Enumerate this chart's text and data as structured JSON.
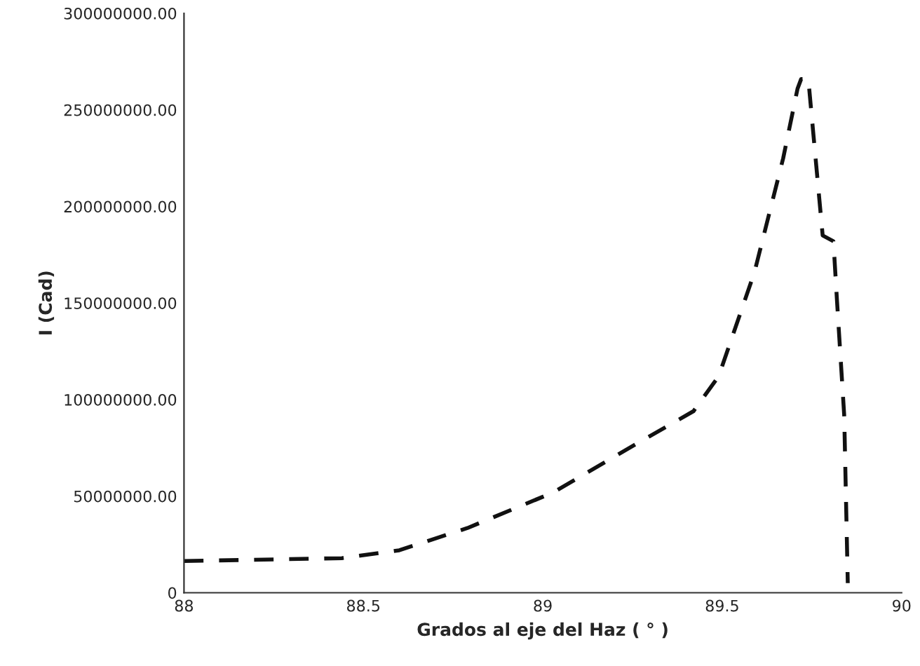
{
  "chart_data": {
    "type": "line",
    "xlabel": "Grados al eje del Haz ( ° )",
    "ylabel": "I (Cad)",
    "x": [
      88,
      88.44,
      88.6,
      88.79,
      89.03,
      89.26,
      89.42,
      89.49,
      89.59,
      89.67,
      89.71,
      89.72,
      89.74,
      89.78,
      89.81,
      89.82,
      89.84,
      89.85
    ],
    "series": [
      {
        "color": "#111111",
        "values": [
          16400000,
          17900000,
          22000000,
          33500000,
          52000000,
          77000000,
          94000000,
          112000000,
          166000000,
          225000000,
          261000000,
          266000000,
          266000000,
          185000000,
          182000000,
          151000000,
          92000000,
          5000000
        ]
      }
    ],
    "xlim": [
      88,
      90
    ],
    "xticks": [
      88,
      88.5,
      89,
      89.5,
      90
    ],
    "ylim": [
      0,
      300000000
    ],
    "yticks": [
      0,
      {
        "value": 50000000,
        "label": "50000000.00"
      },
      {
        "value": 100000000,
        "label": "100000000.00"
      },
      {
        "value": 150000000,
        "label": "150000000.00"
      },
      {
        "value": 200000000,
        "label": "200000000.00"
      },
      {
        "value": 250000000,
        "label": "250000000.00"
      },
      {
        "value": 300000000,
        "label": "300000000.00"
      }
    ],
    "grid": false,
    "legend": false,
    "line_style": "dashed",
    "marker": "none"
  }
}
